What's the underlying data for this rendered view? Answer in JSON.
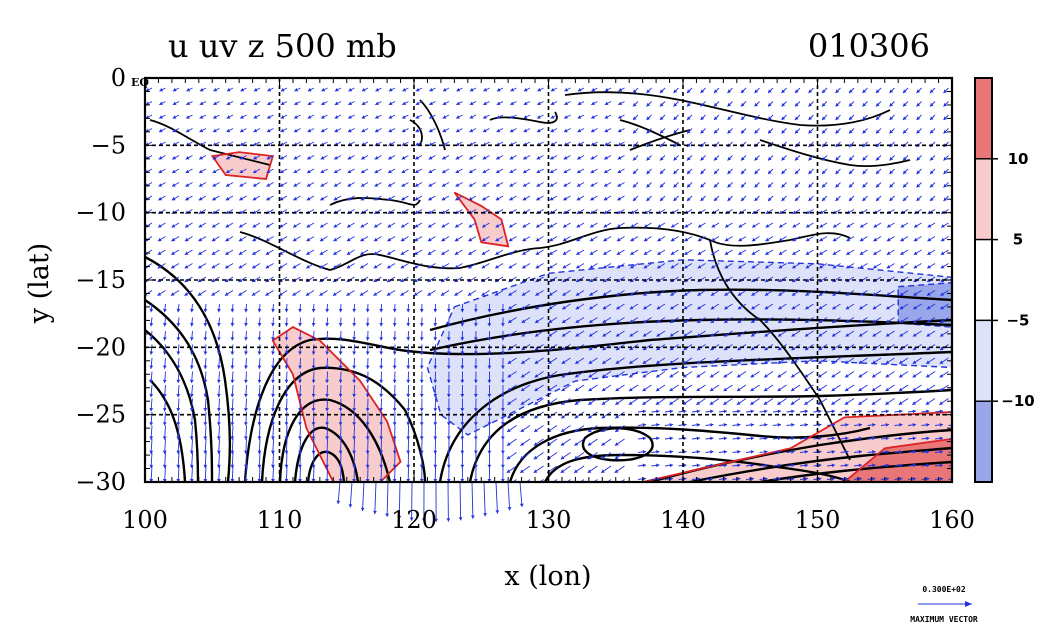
{
  "chart_data": {
    "type": "contour-vector-map",
    "title": "u uv z 500 mb",
    "date_label": "010306",
    "xlabel": "x (lon)",
    "ylabel": "y (lat)",
    "xlim": [
      100,
      160
    ],
    "ylim": [
      -30,
      0
    ],
    "x_ticks": [
      100,
      110,
      120,
      130,
      140,
      150,
      160
    ],
    "y_ticks": [
      0,
      -5,
      -10,
      -15,
      -20,
      -25,
      -30
    ],
    "y_tick_labels": [
      "0",
      "−5",
      "−10",
      "−15",
      "−20",
      "−25",
      "−30"
    ],
    "origin_label": "EQ",
    "grid": true,
    "colorbar": {
      "levels": [
        10,
        5,
        -5,
        -10
      ],
      "labels": [
        "10",
        "5",
        "−5",
        "−10"
      ],
      "bands": [
        {
          "range": "> 10",
          "color": "#ea7778"
        },
        {
          "range": "5 to 10",
          "color": "#f8cccd"
        },
        {
          "range": "-5 to 5",
          "color": "#ffffff"
        },
        {
          "range": "-10 to -5",
          "color": "#dde2fa"
        },
        {
          "range": "< -10",
          "color": "#9aa6ea"
        }
      ]
    },
    "shaded_regions": [
      {
        "name": "easterly band",
        "sign": "negative",
        "color": "#dde2fa",
        "polygon_lonlat": [
          [
            123,
            -17
          ],
          [
            130,
            -14.5
          ],
          [
            140,
            -13.5
          ],
          [
            150,
            -13.8
          ],
          [
            160,
            -14.8
          ],
          [
            160,
            -21.5
          ],
          [
            150,
            -21
          ],
          [
            140,
            -21.5
          ],
          [
            132,
            -22.5
          ],
          [
            127,
            -25
          ],
          [
            124,
            -26.5
          ],
          [
            122,
            -25
          ],
          [
            121,
            -21.5
          ]
        ]
      },
      {
        "name": "easterly core",
        "sign": "negative",
        "color": "#9aa6ea",
        "polygon_lonlat": [
          [
            156,
            -15.5
          ],
          [
            160,
            -15.2
          ],
          [
            160,
            -18.5
          ],
          [
            156,
            -18.2
          ]
        ]
      },
      {
        "name": "westerly lobe west",
        "sign": "positive",
        "color": "#f8cccd",
        "polygon_lonlat": [
          [
            109.5,
            -19.5
          ],
          [
            111,
            -18.5
          ],
          [
            113,
            -19.5
          ],
          [
            116,
            -22.5
          ],
          [
            118,
            -25.5
          ],
          [
            119,
            -28.5
          ],
          [
            117.5,
            -30
          ],
          [
            114,
            -30
          ],
          [
            112,
            -26
          ],
          [
            111,
            -22
          ]
        ]
      },
      {
        "name": "westerly jet southeast",
        "sign": "positive",
        "color": "#f8cccd",
        "polygon_lonlat": [
          [
            137,
            -30
          ],
          [
            148,
            -27.5
          ],
          [
            152,
            -25.2
          ],
          [
            160,
            -24.8
          ],
          [
            160,
            -30
          ]
        ]
      },
      {
        "name": "westerly jet core",
        "sign": "positive",
        "color": "#ea7778",
        "polygon_lonlat": [
          [
            152,
            -30
          ],
          [
            155,
            -27.5
          ],
          [
            160,
            -26.8
          ],
          [
            160,
            -30
          ]
        ]
      },
      {
        "name": "java spot",
        "sign": "positive",
        "color": "#f8cccd",
        "polygon_lonlat": [
          [
            105,
            -5.8
          ],
          [
            107,
            -5.5
          ],
          [
            109.5,
            -5.8
          ],
          [
            109,
            -7.5
          ],
          [
            106,
            -7.2
          ]
        ]
      },
      {
        "name": "timor spot",
        "sign": "positive",
        "color": "#f8cccd",
        "polygon_lonlat": [
          [
            123,
            -8.5
          ],
          [
            125,
            -9.5
          ],
          [
            126.5,
            -10.5
          ],
          [
            127,
            -12.5
          ],
          [
            125,
            -12.2
          ],
          [
            124.5,
            -10.5
          ]
        ]
      }
    ],
    "max_vector_label": "0.300E+02",
    "max_vector_caption": "MAXIMUM VECTOR"
  }
}
